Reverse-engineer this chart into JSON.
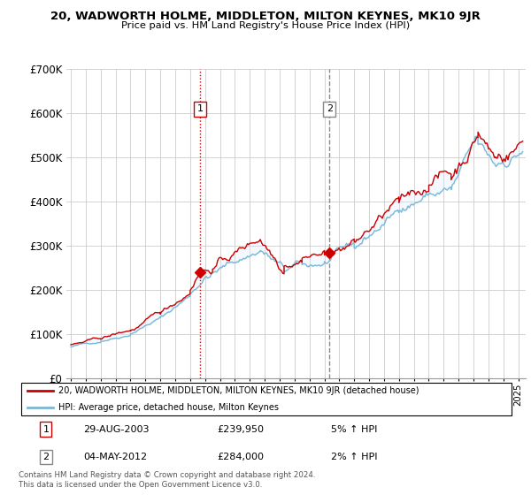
{
  "title": "20, WADWORTH HOLME, MIDDLETON, MILTON KEYNES, MK10 9JR",
  "subtitle": "Price paid vs. HM Land Registry's House Price Index (HPI)",
  "ylim": [
    0,
    700000
  ],
  "xlim_start": 1994.7,
  "xlim_end": 2025.5,
  "sale1_date": 2003.66,
  "sale1_price": 239950,
  "sale2_date": 2012.34,
  "sale2_price": 284000,
  "legend_line1": "20, WADWORTH HOLME, MIDDLETON, MILTON KEYNES, MK10 9JR (detached house)",
  "legend_line2": "HPI: Average price, detached house, Milton Keynes",
  "table_row1": [
    "1",
    "29-AUG-2003",
    "£239,950",
    "5% ↑ HPI"
  ],
  "table_row2": [
    "2",
    "04-MAY-2012",
    "£284,000",
    "2% ↑ HPI"
  ],
  "footer": "Contains HM Land Registry data © Crown copyright and database right 2024.\nThis data is licensed under the Open Government Licence v3.0.",
  "hpi_color": "#7bb8d4",
  "price_color": "#cc0000",
  "shade_color": "#ddeeff",
  "vline1_color": "#cc0000",
  "vline1_style": "dotted",
  "vline2_color": "#888888",
  "vline2_style": "dashed",
  "box1_edge": "#cc0000",
  "box2_edge": "#888888"
}
